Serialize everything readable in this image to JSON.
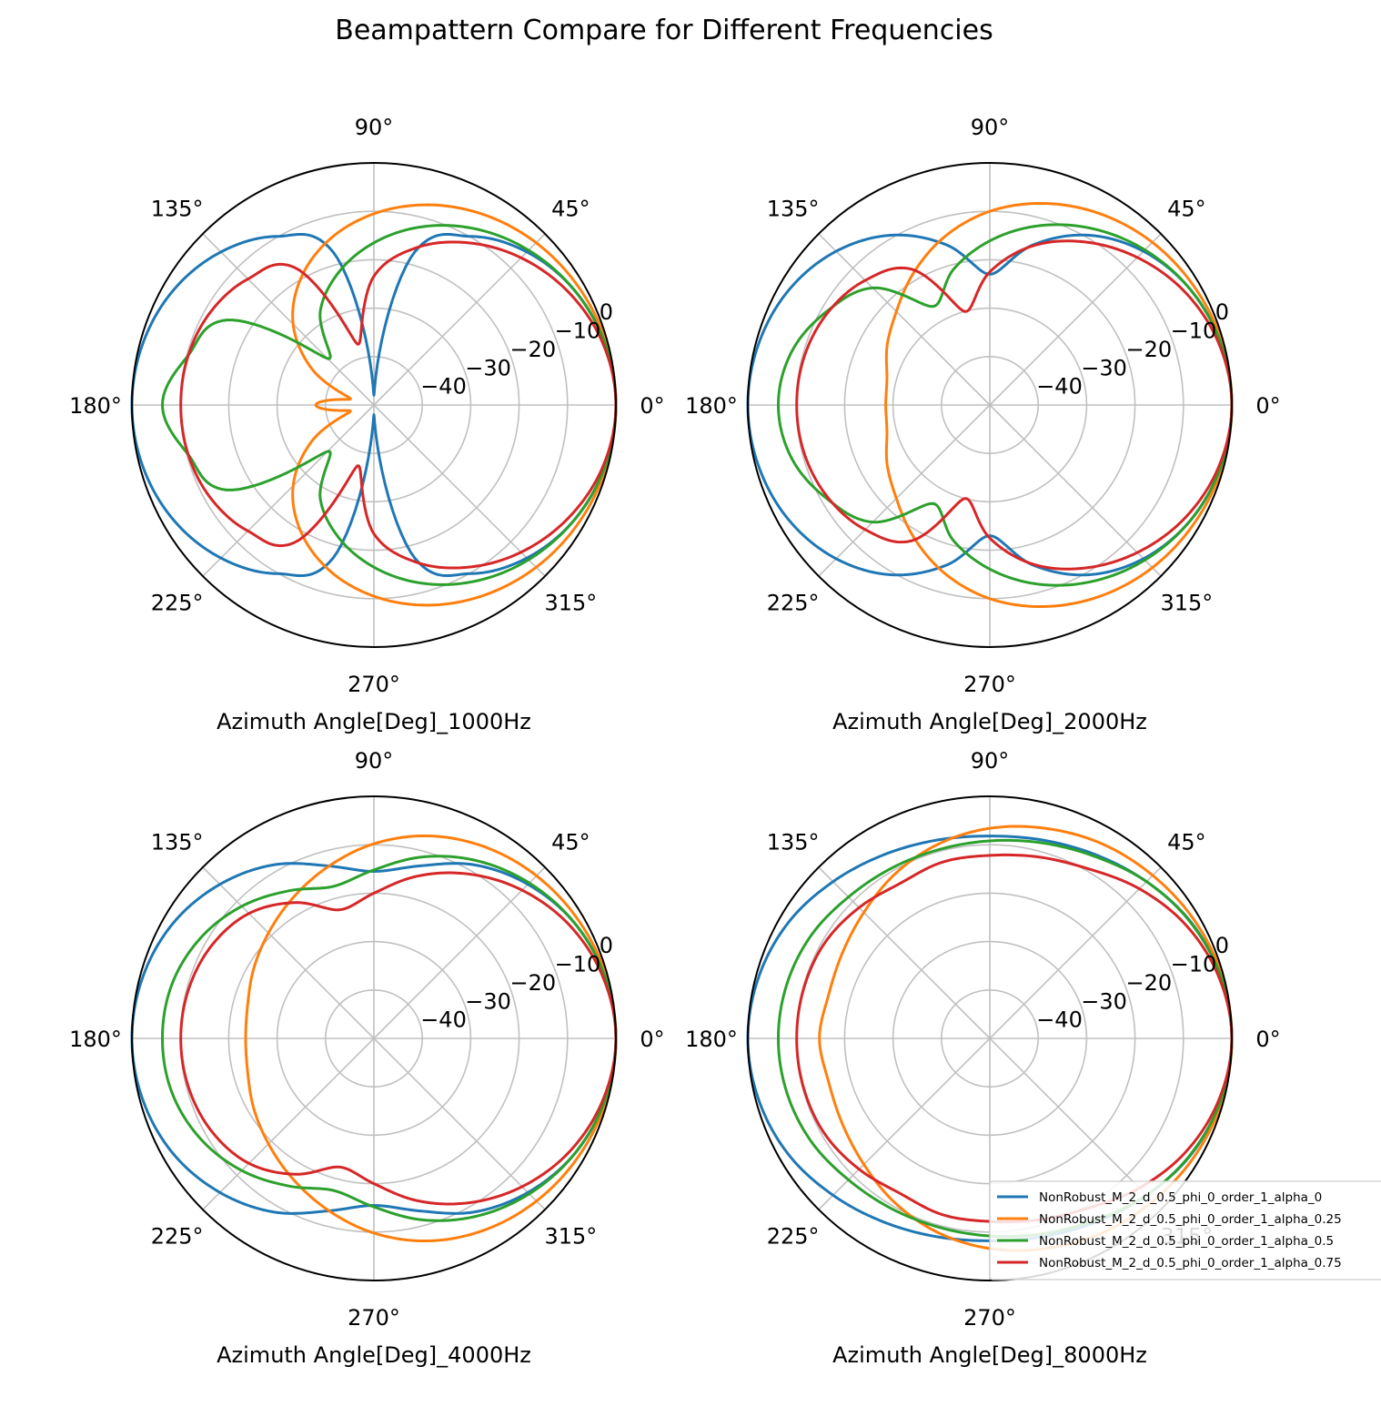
{
  "figure": {
    "title": "Beampattern Compare for Different Frequencies"
  },
  "colors": {
    "series": [
      "#1f77b4",
      "#ff7f0e",
      "#2ca02c",
      "#d62728"
    ],
    "grid": "#c0c0c0",
    "frame": "#000000"
  },
  "angle_ticks": [
    "0°",
    "45°",
    "90°",
    "135°",
    "180°",
    "225°",
    "270°",
    "315°"
  ],
  "radial_ticks": [
    "−40",
    "−30",
    "−20",
    "−10",
    "0"
  ],
  "legend": {
    "entries": [
      "NonRobust_M_2_d_0.5_phi_0_order_1_alpha_0",
      "NonRobust_M_2_d_0.5_phi_0_order_1_alpha_0.25",
      "NonRobust_M_2_d_0.5_phi_0_order_1_alpha_0.5",
      "NonRobust_M_2_d_0.5_phi_0_order_1_alpha_0.75"
    ],
    "placement": "lower-right (bottom-right subplot)"
  },
  "chart_data": [
    {
      "type": "polar-line",
      "xlabel": "Azimuth Angle[Deg]_1000Hz",
      "theta_unit": "deg",
      "r_unit": "dB",
      "rlim": [
        -50,
        0
      ],
      "grid": true,
      "theta_samples": [
        0,
        15,
        30,
        45,
        60,
        75,
        90,
        105,
        120,
        135,
        150,
        165,
        180
      ],
      "symmetric_about_0": true,
      "series": [
        {
          "values": [
            0,
            -0.6,
            -2.3,
            -5.3,
            -9.8,
            -17.2,
            -48,
            -17.2,
            -9.8,
            -5.3,
            -2.3,
            -0.6,
            0
          ]
        },
        {
          "values": [
            0,
            -0.3,
            -1.2,
            -2.6,
            -4.6,
            -7.2,
            -10.5,
            -14.6,
            -19.8,
            -26.4,
            -35.3,
            -45,
            -38
          ]
        },
        {
          "values": [
            0,
            -0.6,
            -2.3,
            -4.8,
            -8,
            -11.9,
            -16.5,
            -21.7,
            -27.8,
            -36.4,
            -14.9,
            -10.3,
            -6.3
          ]
        },
        {
          "values": [
            0,
            -1,
            -3.5,
            -7,
            -11.3,
            -16.4,
            -23.4,
            -37,
            -17.2,
            -13.2,
            -11.2,
            -10.3,
            -10.1
          ]
        }
      ]
    },
    {
      "type": "polar-line",
      "xlabel": "Azimuth Angle[Deg]_2000Hz",
      "theta_unit": "deg",
      "r_unit": "dB",
      "rlim": [
        -50,
        0
      ],
      "grid": true,
      "theta_samples": [
        0,
        15,
        30,
        45,
        60,
        75,
        90,
        105,
        120,
        135,
        150,
        165,
        180
      ],
      "symmetric_about_0": true,
      "series": [
        {
          "values": [
            0,
            -0.6,
            -2.2,
            -5.1,
            -9.5,
            -15.8,
            -23,
            -15.8,
            -9.5,
            -5.1,
            -2.2,
            -0.6,
            0
          ]
        },
        {
          "values": [
            0,
            -0.3,
            -1.2,
            -2.5,
            -4.4,
            -6.9,
            -10,
            -14,
            -18.5,
            -22.7,
            -25.5,
            -28,
            -28.5
          ]
        },
        {
          "values": [
            0,
            -0.6,
            -2.2,
            -4.7,
            -7.9,
            -11.7,
            -16.1,
            -21,
            -26.5,
            -15.8,
            -11.2,
            -7.6,
            -6.3
          ]
        },
        {
          "values": [
            0,
            -1,
            -3.4,
            -6.9,
            -11.1,
            -16,
            -22.5,
            -30,
            -17.6,
            -13.6,
            -11.5,
            -10.4,
            -10.1
          ]
        }
      ]
    },
    {
      "type": "polar-line",
      "xlabel": "Azimuth Angle[Deg]_4000Hz",
      "theta_unit": "deg",
      "r_unit": "dB",
      "rlim": [
        -50,
        0
      ],
      "grid": true,
      "theta_samples": [
        0,
        15,
        30,
        45,
        60,
        75,
        90,
        105,
        120,
        135,
        150,
        165,
        180
      ],
      "symmetric_about_0": true,
      "series": [
        {
          "values": [
            0,
            -0.6,
            -2.2,
            -5,
            -8.6,
            -13.1,
            -15.5,
            -13.1,
            -8.6,
            -5,
            -2.2,
            -0.6,
            0
          ]
        },
        {
          "values": [
            0,
            -0.3,
            -1.2,
            -2.5,
            -4.3,
            -6.7,
            -9.8,
            -13.3,
            -16.5,
            -19.2,
            -21.3,
            -23,
            -23.5
          ]
        },
        {
          "values": [
            0,
            -0.6,
            -2.2,
            -4.6,
            -7.6,
            -11.2,
            -15.2,
            -17.5,
            -14.8,
            -11.4,
            -8.6,
            -6.8,
            -6.3
          ]
        },
        {
          "values": [
            0,
            -1,
            -3.3,
            -6.7,
            -10.8,
            -15.3,
            -20,
            -22.5,
            -17.6,
            -13.5,
            -11.4,
            -10.4,
            -10.1
          ]
        }
      ]
    },
    {
      "type": "polar-line",
      "xlabel": "Azimuth Angle[Deg]_8000Hz",
      "theta_unit": "deg",
      "r_unit": "dB",
      "rlim": [
        -50,
        0
      ],
      "grid": true,
      "theta_samples": [
        0,
        15,
        30,
        45,
        60,
        75,
        90,
        105,
        120,
        135,
        150,
        165,
        180
      ],
      "symmetric_about_0": true,
      "series": [
        {
          "values": [
            0,
            -0.6,
            -2,
            -4.2,
            -6.2,
            -7.6,
            -8.2,
            -7.6,
            -6.2,
            -4.2,
            -2,
            -0.6,
            0
          ]
        },
        {
          "values": [
            0,
            -0.3,
            -1.2,
            -2.4,
            -3.6,
            -5.1,
            -6.6,
            -8.5,
            -10.8,
            -13.2,
            -14.8,
            -15.5,
            -14.8
          ]
        },
        {
          "values": [
            0,
            -0.6,
            -2.1,
            -4.2,
            -6.6,
            -8.2,
            -9.2,
            -9.6,
            -9.4,
            -8.7,
            -7.4,
            -6.6,
            -6.3
          ]
        },
        {
          "values": [
            0,
            -1,
            -3.2,
            -6.3,
            -9.5,
            -11.2,
            -12.2,
            -12.3,
            -13,
            -11.8,
            -10.6,
            -10.2,
            -10.1
          ]
        }
      ]
    }
  ]
}
